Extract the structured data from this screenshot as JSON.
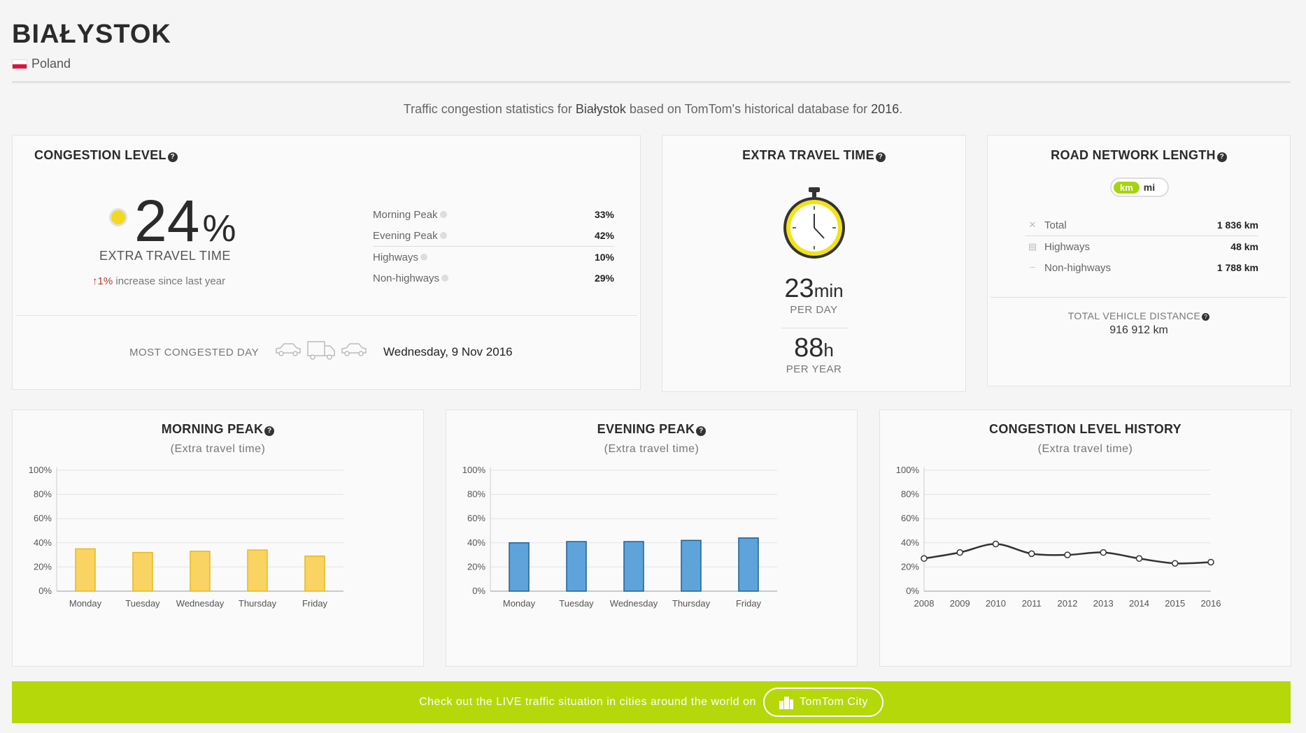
{
  "header": {
    "city": "BIAŁYSTOK",
    "country": "Poland"
  },
  "intro": {
    "prefix": "Traffic congestion statistics for ",
    "city": "Białystok",
    "middle": " based on TomTom's historical database for ",
    "year": "2016",
    "suffix": "."
  },
  "congestion": {
    "title": "CONGESTION LEVEL",
    "value": "24",
    "unit": "%",
    "label": "EXTRA TRAVEL TIME",
    "change_pct": "1%",
    "change_text": " increase since last year",
    "rows": [
      {
        "label": "Morning Peak",
        "value": "33%"
      },
      {
        "label": "Evening Peak",
        "value": "42%"
      },
      {
        "label": "Highways",
        "value": "10%"
      },
      {
        "label": "Non-highways",
        "value": "29%"
      }
    ],
    "most_congested_label": "MOST CONGESTED DAY",
    "most_congested_date": "Wednesday, 9 Nov 2016"
  },
  "extra": {
    "title": "EXTRA TRAVEL TIME",
    "per_day_value": "23",
    "per_day_unit": "min",
    "per_day_label": "PER DAY",
    "per_year_value": "88",
    "per_year_unit": "h",
    "per_year_label": "PER YEAR"
  },
  "road": {
    "title": "ROAD NETWORK LENGTH",
    "unit_km": "km",
    "unit_mi": "mi",
    "rows": [
      {
        "label": "Total",
        "value": "1 836 km"
      },
      {
        "label": "Highways",
        "value": "48 km"
      },
      {
        "label": "Non-highways",
        "value": "1 788 km"
      }
    ],
    "tvd_label": "TOTAL VEHICLE DISTANCE",
    "tvd_value": "916 912 km"
  },
  "charts": {
    "subtitle": "(Extra travel time)",
    "morning_title": "MORNING PEAK",
    "evening_title": "EVENING PEAK",
    "history_title": "CONGESTION LEVEL HISTORY"
  },
  "chart_data": [
    {
      "type": "bar",
      "title": "MORNING PEAK",
      "subtitle": "(Extra travel time)",
      "categories": [
        "Monday",
        "Tuesday",
        "Wednesday",
        "Thursday",
        "Friday"
      ],
      "values": [
        35,
        32,
        33,
        34,
        29
      ],
      "ylim": [
        0,
        100
      ],
      "yticks": [
        "0%",
        "20%",
        "40%",
        "60%",
        "80%",
        "100%"
      ],
      "color": "#f9d463",
      "stroke": "#e8b81c",
      "grid": true
    },
    {
      "type": "bar",
      "title": "EVENING PEAK",
      "subtitle": "(Extra travel time)",
      "categories": [
        "Monday",
        "Tuesday",
        "Wednesday",
        "Thursday",
        "Friday"
      ],
      "values": [
        40,
        41,
        41,
        42,
        44
      ],
      "ylim": [
        0,
        100
      ],
      "yticks": [
        "0%",
        "20%",
        "40%",
        "60%",
        "80%",
        "100%"
      ],
      "color": "#5fa3db",
      "stroke": "#1f5f95",
      "grid": true
    },
    {
      "type": "line",
      "title": "CONGESTION LEVEL HISTORY",
      "subtitle": "(Extra travel time)",
      "x": [
        "2008",
        "2009",
        "2010",
        "2011",
        "2012",
        "2013",
        "2014",
        "2015",
        "2016"
      ],
      "values": [
        27,
        32,
        39,
        31,
        30,
        32,
        27,
        23,
        24
      ],
      "ylim": [
        0,
        100
      ],
      "yticks": [
        "0%",
        "20%",
        "40%",
        "60%",
        "80%",
        "100%"
      ],
      "color": "#333333",
      "grid": true
    }
  ],
  "banner": {
    "text": "Check out the LIVE traffic situation in cities around the world on",
    "button": "TomTom City"
  },
  "colors": {
    "accent": "#b5d80b",
    "level_dot": "#f2d91d",
    "increase": "#c0392b"
  }
}
